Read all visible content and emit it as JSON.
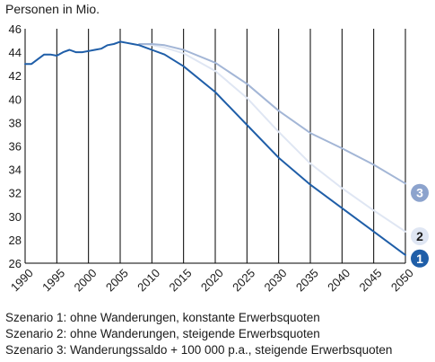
{
  "chart_data": {
    "type": "line",
    "ylabel": "Personen in Mio.",
    "ylim": [
      26,
      46
    ],
    "xlim": [
      1990,
      2050
    ],
    "y_ticks": [
      "26",
      "28",
      "30",
      "32",
      "34",
      "36",
      "38",
      "40",
      "42",
      "44",
      "46"
    ],
    "x_ticks": [
      "1990",
      "1995",
      "2000",
      "2005",
      "2010",
      "2015",
      "2020",
      "2025",
      "2030",
      "2035",
      "2040",
      "2045",
      "2050"
    ],
    "grid": "vertical",
    "series": [
      {
        "name": "1",
        "color": "#1f5ea8",
        "x": [
          1990,
          1991,
          1992,
          1993,
          1994,
          1995,
          1996,
          1997,
          1998,
          1999,
          2000,
          2001,
          2002,
          2003,
          2004,
          2005,
          2006,
          2007,
          2008,
          2009,
          2010,
          2012,
          2015,
          2020,
          2025,
          2030,
          2035,
          2040,
          2045,
          2050
        ],
        "y": [
          43.0,
          43.0,
          43.4,
          43.8,
          43.8,
          43.7,
          44.0,
          44.2,
          44.0,
          44.0,
          44.1,
          44.2,
          44.3,
          44.6,
          44.7,
          44.9,
          44.8,
          44.7,
          44.6,
          44.4,
          44.2,
          43.8,
          42.8,
          40.6,
          37.8,
          35.0,
          32.7,
          30.7,
          28.7,
          26.7
        ]
      },
      {
        "name": "2",
        "color": "#dfe6f3",
        "x": [
          2008,
          2010,
          2012,
          2015,
          2020,
          2025,
          2030,
          2035,
          2040,
          2045,
          2050
        ],
        "y": [
          44.7,
          44.6,
          44.4,
          43.9,
          42.4,
          40.1,
          37.2,
          34.5,
          32.4,
          30.5,
          28.7
        ]
      },
      {
        "name": "3",
        "color": "#a3b6d6",
        "x": [
          2008,
          2010,
          2012,
          2015,
          2020,
          2025,
          2030,
          2035,
          2040,
          2045,
          2050
        ],
        "y": [
          44.7,
          44.7,
          44.6,
          44.2,
          43.1,
          41.3,
          39.0,
          37.1,
          35.8,
          34.4,
          32.8
        ]
      }
    ],
    "markers": [
      {
        "label": "3",
        "fill": "#8ca3cd",
        "text_color": "#ffffff"
      },
      {
        "label": "2",
        "fill": "#dfe6f3",
        "text_color": "#1a1a1a"
      },
      {
        "label": "1",
        "fill": "#1f5ea8",
        "text_color": "#ffffff"
      }
    ],
    "legend": [
      "Szenario 1: ohne Wanderungen, konstante Erwerbsquoten",
      "Szenario 2: ohne Wanderungen, steigende Erwerbsquoten",
      "Szenario 3: Wanderungssaldo + 100 000 p.a., steigende Erwerbsquoten"
    ]
  }
}
